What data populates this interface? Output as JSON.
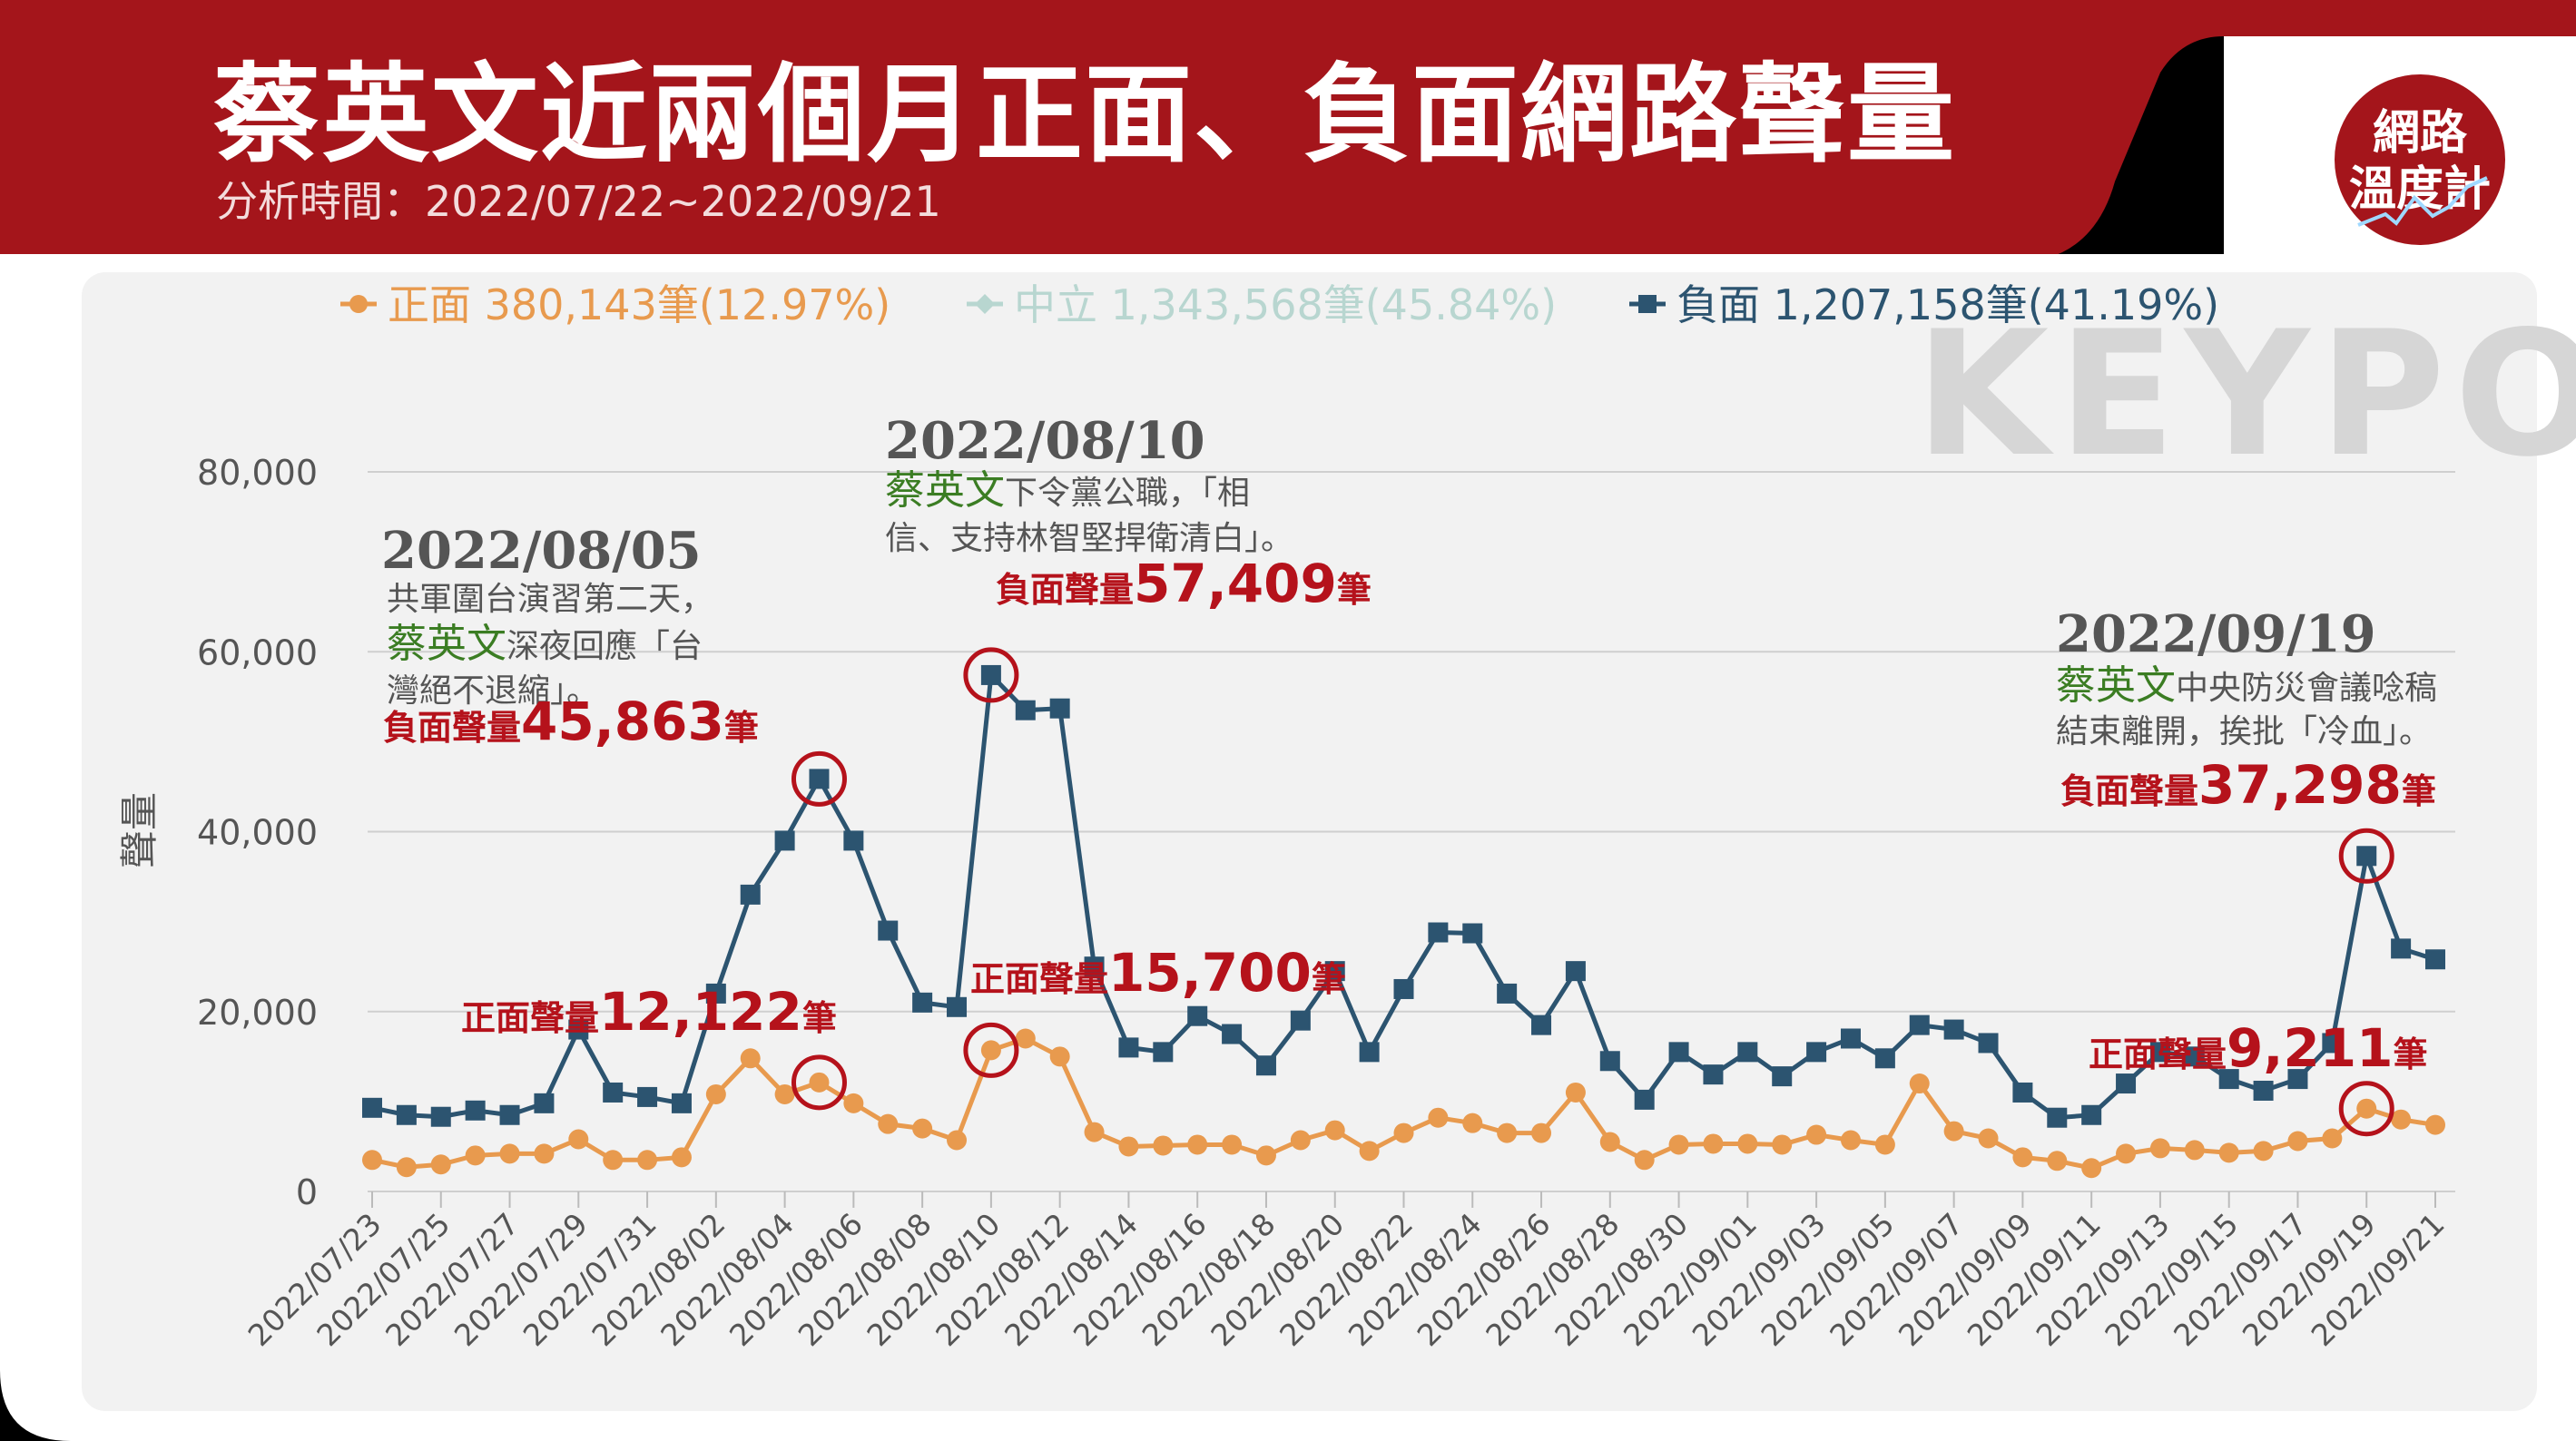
{
  "header": {
    "title": "蔡英文近兩個月正面、負面網路聲量",
    "subtitle": "分析時間：2022/07/22~2022/09/21"
  },
  "badge": {
    "line1": "網路",
    "line2": "溫度計"
  },
  "watermark": "KEYPO",
  "colors": {
    "header_bg": "#a4151b",
    "positive": "#e89a4e",
    "neutral": "#b8d6d0",
    "negative": "#2c5470",
    "annotation_red": "#b5121b",
    "keyword_green": "#3b7d23"
  },
  "chart_data": {
    "type": "line",
    "ylabel": "聲量",
    "xlabel": "",
    "ylim": [
      0,
      80000
    ],
    "y_ticks": [
      "0",
      "20,000",
      "40,000",
      "60,000",
      "80,000"
    ],
    "grid": true,
    "legend_position": "top",
    "legend": [
      {
        "label": "正面 380,143筆(12.97%)",
        "marker": "circle",
        "color": "#e89a4e"
      },
      {
        "label": "中立 1,343,568筆(45.84%)",
        "marker": "diamond",
        "color": "#b8d6d0"
      },
      {
        "label": "負面 1,207,158筆(41.19%)",
        "marker": "square",
        "color": "#2c5470"
      }
    ],
    "x": [
      "2022/07/23",
      "2022/07/24",
      "2022/07/25",
      "2022/07/26",
      "2022/07/27",
      "2022/07/28",
      "2022/07/29",
      "2022/07/30",
      "2022/07/31",
      "2022/08/01",
      "2022/08/02",
      "2022/08/03",
      "2022/08/04",
      "2022/08/05",
      "2022/08/06",
      "2022/08/07",
      "2022/08/08",
      "2022/08/09",
      "2022/08/10",
      "2022/08/11",
      "2022/08/12",
      "2022/08/13",
      "2022/08/14",
      "2022/08/15",
      "2022/08/16",
      "2022/08/17",
      "2022/08/18",
      "2022/08/19",
      "2022/08/20",
      "2022/08/21",
      "2022/08/22",
      "2022/08/23",
      "2022/08/24",
      "2022/08/25",
      "2022/08/26",
      "2022/08/27",
      "2022/08/28",
      "2022/08/29",
      "2022/08/30",
      "2022/08/31",
      "2022/09/01",
      "2022/09/02",
      "2022/09/03",
      "2022/09/04",
      "2022/09/05",
      "2022/09/06",
      "2022/09/07",
      "2022/09/08",
      "2022/09/09",
      "2022/09/10",
      "2022/09/11",
      "2022/09/12",
      "2022/09/13",
      "2022/09/14",
      "2022/09/15",
      "2022/09/16",
      "2022/09/17",
      "2022/09/18",
      "2022/09/19",
      "2022/09/20",
      "2022/09/21"
    ],
    "x_tick_labels": [
      "2022/07/23",
      "2022/07/25",
      "2022/07/27",
      "2022/07/29",
      "2022/07/31",
      "2022/08/02",
      "2022/08/04",
      "2022/08/06",
      "2022/08/08",
      "2022/08/10",
      "2022/08/12",
      "2022/08/14",
      "2022/08/16",
      "2022/08/18",
      "2022/08/20",
      "2022/08/22",
      "2022/08/24",
      "2022/08/26",
      "2022/08/28",
      "2022/08/30",
      "2022/09/01",
      "2022/09/03",
      "2022/09/05",
      "2022/09/07",
      "2022/09/09",
      "2022/09/11",
      "2022/09/13",
      "2022/09/15",
      "2022/09/17",
      "2022/09/19",
      "2022/09/21"
    ],
    "series": [
      {
        "name": "負面",
        "color": "#2c5470",
        "marker": "square",
        "values": [
          9300,
          8500,
          8300,
          9000,
          8500,
          9800,
          18000,
          11000,
          10500,
          9800,
          22000,
          33000,
          39000,
          45863,
          39000,
          29000,
          21000,
          20500,
          57409,
          53500,
          53700,
          25000,
          16000,
          15500,
          19500,
          17500,
          14000,
          19000,
          24500,
          15500,
          22500,
          28800,
          28700,
          22000,
          18500,
          24500,
          14500,
          10200,
          15500,
          13000,
          15500,
          12800,
          15500,
          17000,
          14800,
          18500,
          18000,
          16500,
          11000,
          8200,
          8500,
          12000,
          15500,
          15000,
          12500,
          11200,
          12500,
          16500,
          37298,
          27000,
          25800
        ]
      },
      {
        "name": "正面",
        "color": "#e89a4e",
        "marker": "circle",
        "values": [
          3500,
          2700,
          3000,
          4000,
          4200,
          4200,
          5800,
          3500,
          3500,
          3800,
          10800,
          14800,
          10800,
          12122,
          9800,
          7500,
          7000,
          5700,
          15700,
          17000,
          15000,
          6600,
          5000,
          5100,
          5200,
          5200,
          4000,
          5700,
          6800,
          4500,
          6500,
          8200,
          7600,
          6500,
          6500,
          11000,
          5500,
          3500,
          5200,
          5300,
          5300,
          5200,
          6300,
          5700,
          5200,
          12000,
          6700,
          5900,
          3800,
          3400,
          2600,
          4200,
          4800,
          4600,
          4300,
          4500,
          5600,
          5900,
          9211,
          8000,
          7400
        ]
      }
    ],
    "annotations": [
      {
        "date": "2022/08/05",
        "lines": [
          {
            "kw": "",
            "text": "共軍圍台演習第二天，"
          },
          {
            "kw": "蔡英文",
            "text": "深夜回應「台"
          },
          {
            "kw": "",
            "text": "灣絕不退縮」。"
          }
        ],
        "neg_label": "負面聲量",
        "neg_value": "45,863",
        "neg_unit": "筆",
        "pos_label": "正面聲量",
        "pos_value": "12,122",
        "pos_unit": "筆"
      },
      {
        "date": "2022/08/10",
        "lines": [
          {
            "kw": "蔡英文",
            "text": "下令黨公職，「相"
          },
          {
            "kw": "",
            "text": "信、支持林智堅捍衛清白」。"
          }
        ],
        "neg_label": "負面聲量",
        "neg_value": "57,409",
        "neg_unit": "筆",
        "pos_label": "正面聲量",
        "pos_value": "15,700",
        "pos_unit": "筆"
      },
      {
        "date": "2022/09/19",
        "lines": [
          {
            "kw": "蔡英文",
            "text": "中央防災會議唸稿"
          },
          {
            "kw": "",
            "text": "結束離開，挨批「冷血」。"
          }
        ],
        "neg_label": "負面聲量",
        "neg_value": "37,298",
        "neg_unit": "筆",
        "pos_label": "正面聲量",
        "pos_value": "9,211",
        "pos_unit": "筆"
      }
    ]
  }
}
